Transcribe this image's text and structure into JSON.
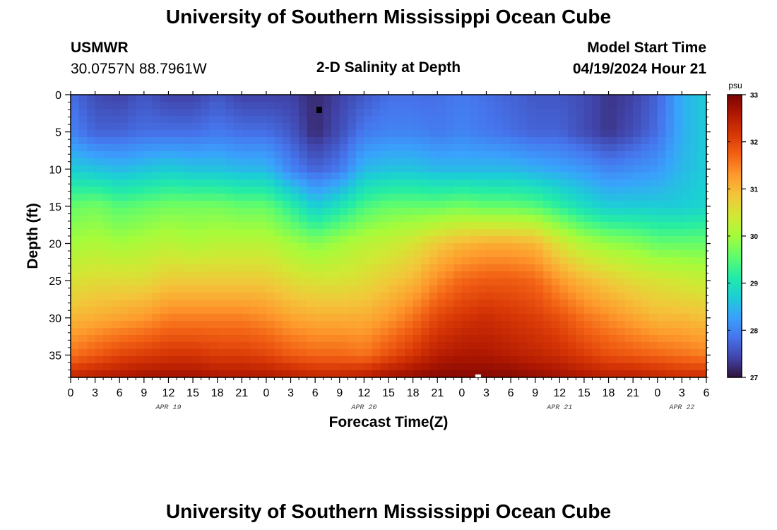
{
  "header": {
    "title": "University of Southern Mississippi Ocean Cube",
    "station_id": "USMWR",
    "station_coords": "30.0757N  88.7961W",
    "plot_title": "2-D Salinity at Depth",
    "model_start_label": "Model Start Time",
    "model_start_value": "04/19/2024 Hour 21"
  },
  "footer": {
    "title": "University of Southern Mississippi Ocean Cube"
  },
  "colors": {
    "colormap": [
      "#30123b",
      "#4145ab",
      "#4675ed",
      "#39a2fc",
      "#1bcfd4",
      "#24eca6",
      "#61fc6c",
      "#a4fc3b",
      "#d1e834",
      "#f3c63a",
      "#fe9b2d",
      "#f36315",
      "#d93806",
      "#b11901",
      "#7a0403"
    ]
  },
  "chart_data": {
    "type": "heatmap",
    "variable": "Salinity",
    "units": "psu",
    "xlabel": "Forecast Time(Z)",
    "ylabel": "Depth (ft)",
    "xlim_hours": [
      0,
      78
    ],
    "ylim_ft": [
      0,
      38
    ],
    "x_ticks": [
      {
        "h": 0,
        "label": "0"
      },
      {
        "h": 3,
        "label": "3"
      },
      {
        "h": 6,
        "label": "6"
      },
      {
        "h": 9,
        "label": "9"
      },
      {
        "h": 12,
        "label": "12"
      },
      {
        "h": 15,
        "label": "15"
      },
      {
        "h": 18,
        "label": "18"
      },
      {
        "h": 21,
        "label": "21"
      },
      {
        "h": 24,
        "label": "0"
      },
      {
        "h": 27,
        "label": "3"
      },
      {
        "h": 30,
        "label": "6"
      },
      {
        "h": 33,
        "label": "9"
      },
      {
        "h": 36,
        "label": "12"
      },
      {
        "h": 39,
        "label": "15"
      },
      {
        "h": 42,
        "label": "18"
      },
      {
        "h": 45,
        "label": "21"
      },
      {
        "h": 48,
        "label": "0"
      },
      {
        "h": 51,
        "label": "3"
      },
      {
        "h": 54,
        "label": "6"
      },
      {
        "h": 57,
        "label": "9"
      },
      {
        "h": 60,
        "label": "12"
      },
      {
        "h": 63,
        "label": "15"
      },
      {
        "h": 66,
        "label": "18"
      },
      {
        "h": 69,
        "label": "21"
      },
      {
        "h": 72,
        "label": "0"
      },
      {
        "h": 75,
        "label": "3"
      },
      {
        "h": 78,
        "label": "6"
      }
    ],
    "date_labels": [
      {
        "h": 12,
        "label": "APR 19"
      },
      {
        "h": 36,
        "label": "APR 20"
      },
      {
        "h": 60,
        "label": "APR 21"
      },
      {
        "h": 75,
        "label": "APR 22"
      }
    ],
    "y_ticks": [
      0,
      5,
      10,
      15,
      20,
      25,
      30,
      35
    ],
    "colorbar": {
      "min": 27,
      "max": 33,
      "ticks": [
        27,
        28,
        29,
        30,
        31,
        32,
        33
      ],
      "label": "psu"
    },
    "min_marker": {
      "hour": 30.5,
      "depth_ft": 2
    },
    "max_marker": {
      "hour": 50,
      "depth_ft": 37.8
    },
    "grid_hours": [
      0,
      3,
      6,
      9,
      12,
      15,
      18,
      21,
      24,
      27,
      30,
      33,
      36,
      39,
      42,
      45,
      48,
      51,
      54,
      57,
      60,
      63,
      66,
      69,
      72,
      75,
      78
    ],
    "grid_depths_ft": [
      0,
      5,
      10,
      15,
      20,
      25,
      30,
      35,
      38
    ],
    "salinity_psu": [
      [
        27.8,
        27.5,
        27.4,
        27.6,
        27.4,
        27.4,
        27.6,
        27.4,
        27.4,
        27.4,
        27.2,
        27.4,
        27.6,
        27.8,
        27.8,
        27.8,
        27.9,
        27.8,
        27.7,
        27.6,
        27.6,
        27.5,
        27.3,
        27.4,
        27.7,
        28.4,
        28.7
      ],
      [
        28.0,
        27.7,
        27.7,
        27.8,
        27.8,
        27.8,
        27.9,
        27.8,
        27.8,
        27.6,
        27.2,
        27.5,
        27.9,
        28.0,
        28.0,
        27.9,
        28.0,
        27.9,
        27.8,
        27.7,
        27.7,
        27.5,
        27.3,
        27.5,
        27.8,
        28.4,
        28.7
      ],
      [
        28.7,
        28.6,
        28.5,
        28.6,
        28.7,
        28.6,
        28.6,
        28.5,
        28.5,
        28.0,
        27.7,
        27.9,
        28.5,
        28.6,
        28.6,
        28.5,
        28.5,
        28.5,
        28.5,
        28.4,
        28.3,
        28.2,
        28.0,
        28.1,
        28.2,
        28.5,
        28.7
      ],
      [
        29.6,
        29.7,
        29.5,
        29.6,
        29.7,
        29.7,
        29.7,
        29.6,
        29.6,
        29.2,
        28.7,
        29.0,
        29.4,
        29.6,
        29.6,
        29.6,
        29.7,
        29.6,
        29.6,
        29.5,
        29.2,
        28.9,
        28.7,
        28.7,
        28.7,
        28.7,
        28.8
      ],
      [
        30.0,
        30.1,
        30.0,
        30.1,
        30.2,
        30.1,
        30.2,
        30.2,
        30.2,
        30.0,
        29.8,
        30.0,
        30.2,
        30.3,
        30.5,
        30.8,
        31.0,
        31.1,
        31.1,
        31.0,
        30.5,
        30.1,
        29.9,
        29.8,
        29.6,
        29.6,
        29.6
      ],
      [
        30.5,
        30.6,
        30.6,
        30.6,
        30.8,
        30.8,
        30.8,
        30.8,
        30.8,
        30.6,
        30.5,
        30.5,
        30.6,
        30.8,
        31.0,
        31.4,
        31.7,
        31.8,
        31.8,
        31.7,
        31.3,
        31.0,
        30.8,
        30.6,
        30.5,
        30.4,
        30.3
      ],
      [
        31.0,
        31.1,
        31.2,
        31.3,
        31.5,
        31.5,
        31.5,
        31.5,
        31.4,
        31.2,
        31.1,
        31.1,
        31.1,
        31.3,
        31.6,
        32.0,
        32.2,
        32.3,
        32.2,
        32.1,
        31.9,
        31.6,
        31.4,
        31.2,
        31.0,
        31.0,
        30.9
      ],
      [
        31.6,
        31.8,
        32.0,
        32.1,
        32.2,
        32.2,
        32.1,
        32.1,
        32.0,
        31.8,
        31.7,
        31.7,
        31.6,
        31.9,
        32.2,
        32.5,
        32.6,
        32.6,
        32.5,
        32.4,
        32.3,
        32.1,
        31.9,
        31.8,
        31.7,
        31.6,
        31.5
      ],
      [
        32.4,
        32.5,
        32.6,
        32.7,
        32.7,
        32.7,
        32.6,
        32.6,
        32.6,
        32.5,
        32.4,
        32.4,
        32.5,
        32.7,
        32.8,
        32.9,
        32.9,
        32.9,
        32.9,
        32.8,
        32.7,
        32.6,
        32.5,
        32.5,
        32.4,
        32.3,
        32.3
      ]
    ]
  }
}
